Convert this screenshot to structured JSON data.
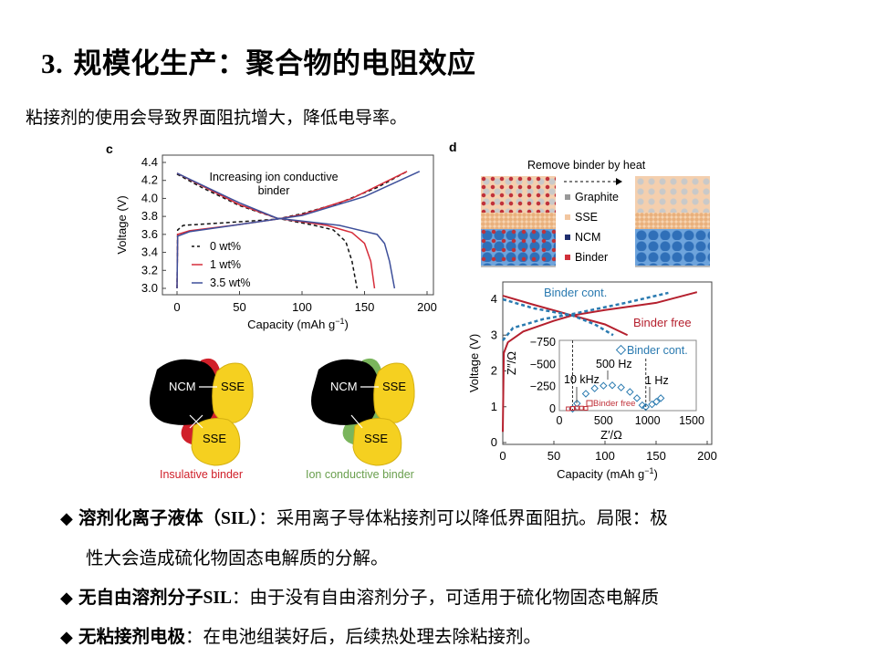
{
  "slide": {
    "title_num": "3.",
    "title_text": " 规模化生产：聚合物的电阻效应",
    "subtitle": "粘接剂的使用会导致界面阻抗增大，降低电导率。"
  },
  "figure_c": {
    "panel_label": "c",
    "annotation_line1": "Increasing ion conductive",
    "annotation_line2": "binder",
    "xlabel": "Capacity (mAh g",
    "xlabel_sup": "−1",
    "xlabel_end": ")",
    "ylabel": "Voltage (V)",
    "xticks": [
      "0",
      "50",
      "100",
      "150",
      "200"
    ],
    "yticks": [
      "3.0",
      "3.2",
      "3.4",
      "3.6",
      "3.8",
      "4.0",
      "4.2",
      "4.4"
    ],
    "legend": [
      {
        "label": "0 wt%",
        "color": "#111111",
        "dash": true
      },
      {
        "label": "1 wt%",
        "color": "#d62d3a",
        "dash": false
      },
      {
        "label": "3.5 wt%",
        "color": "#3d4f9a",
        "dash": false
      }
    ],
    "chart_data": {
      "type": "line",
      "xlim": [
        0,
        200
      ],
      "ylim": [
        2.9,
        4.4
      ],
      "series": [
        {
          "name": "0 wt%",
          "color": "#111111",
          "dash": true,
          "discharge": [
            [
              0,
              4.27
            ],
            [
              20,
              4.12
            ],
            [
              50,
              3.92
            ],
            [
              80,
              3.78
            ],
            [
              110,
              3.7
            ],
            [
              125,
              3.65
            ],
            [
              135,
              3.52
            ],
            [
              140,
              3.3
            ],
            [
              144,
              3.0
            ]
          ],
          "charge": [
            [
              0,
              3.0
            ],
            [
              0.5,
              3.65
            ],
            [
              5,
              3.7
            ],
            [
              50,
              3.74
            ],
            [
              80,
              3.77
            ],
            [
              100,
              3.83
            ],
            [
              130,
              3.95
            ],
            [
              160,
              4.12
            ],
            [
              184,
              4.3
            ]
          ]
        },
        {
          "name": "1 wt%",
          "color": "#d62d3a",
          "dash": false,
          "discharge": [
            [
              0,
              4.28
            ],
            [
              50,
              3.93
            ],
            [
              80,
              3.78
            ],
            [
              120,
              3.7
            ],
            [
              140,
              3.62
            ],
            [
              150,
              3.5
            ],
            [
              155,
              3.3
            ],
            [
              158,
              3.0
            ]
          ],
          "charge": [
            [
              0,
              3.0
            ],
            [
              0.5,
              3.6
            ],
            [
              10,
              3.64
            ],
            [
              50,
              3.71
            ],
            [
              80,
              3.77
            ],
            [
              100,
              3.82
            ],
            [
              140,
              4.0
            ],
            [
              184,
              4.3
            ]
          ]
        },
        {
          "name": "3.5 wt%",
          "color": "#3d4f9a",
          "dash": false,
          "discharge": [
            [
              0,
              4.28
            ],
            [
              50,
              3.95
            ],
            [
              80,
              3.78
            ],
            [
              130,
              3.7
            ],
            [
              160,
              3.6
            ],
            [
              166,
              3.5
            ],
            [
              170,
              3.3
            ],
            [
              174,
              3.0
            ]
          ],
          "charge": [
            [
              0,
              3.0
            ],
            [
              0.5,
              3.58
            ],
            [
              10,
              3.63
            ],
            [
              50,
              3.71
            ],
            [
              80,
              3.77
            ],
            [
              100,
              3.81
            ],
            [
              150,
              4.02
            ],
            [
              194,
              4.3
            ]
          ]
        }
      ]
    }
  },
  "schematic_c": {
    "ncm": "NCM",
    "sse": "SSE",
    "left_caption": "Insulative binder",
    "right_caption": "Ion conductive binder",
    "insulative_color": "#d0202a",
    "conductive_color": "#7ab55c"
  },
  "figure_d": {
    "panel_label": "d",
    "heading": "Remove binder by heat",
    "legend": [
      {
        "label": "Graphite",
        "color": "#999999"
      },
      {
        "label": "SSE",
        "color": "#f2c6a0"
      },
      {
        "label": "NCM",
        "color": "#1f2f6e"
      },
      {
        "label": "Binder",
        "color": "#d0303a"
      }
    ],
    "label_cont": "Binder cont.",
    "label_free": "Binder free",
    "xlabel": "Capacity (mAh g",
    "xlabel_sup": "−1",
    "xlabel_end": ")",
    "ylabel": "Voltage (V)",
    "xticks": [
      "0",
      "50",
      "100",
      "150",
      "200"
    ],
    "yticks": [
      "0",
      "1",
      "2",
      "3",
      "4"
    ],
    "inset": {
      "xlabel": "Z′/Ω",
      "ylabel": "Z″/Ω",
      "xticks": [
        "0",
        "500",
        "1000",
        "1500"
      ],
      "yticks": [
        "0",
        "−250",
        "−500",
        "−750"
      ],
      "legend_cont": "Binder cont.",
      "legend_free": "Binder free",
      "ann_10k": "10 kHz",
      "ann_500": "500 Hz",
      "ann_1": "1 Hz"
    },
    "chart_data": {
      "type": "line",
      "xlim": [
        0,
        200
      ],
      "ylim": [
        0,
        4.4
      ],
      "series": [
        {
          "name": "Binder free",
          "color": "#b5202e",
          "dash": false,
          "discharge": [
            [
              0,
              4.1
            ],
            [
              30,
              3.85
            ],
            [
              68,
              3.55
            ],
            [
              100,
              3.3
            ],
            [
              122,
              3.0
            ]
          ],
          "charge": [
            [
              0,
              0.3
            ],
            [
              1,
              2.5
            ],
            [
              5,
              2.8
            ],
            [
              20,
              3.1
            ],
            [
              50,
              3.4
            ],
            [
              68,
              3.55
            ],
            [
              100,
              3.7
            ],
            [
              150,
              3.9
            ],
            [
              190,
              4.2
            ]
          ]
        },
        {
          "name": "Binder cont.",
          "color": "#2a7ab0",
          "dash": true,
          "discharge": [
            [
              0,
              4.0
            ],
            [
              30,
              3.75
            ],
            [
              68,
              3.55
            ],
            [
              90,
              3.3
            ],
            [
              108,
              3.0
            ]
          ],
          "charge": [
            [
              0,
              2.85
            ],
            [
              10,
              3.2
            ],
            [
              40,
              3.45
            ],
            [
              70,
              3.6
            ],
            [
              120,
              3.9
            ],
            [
              162,
              4.18
            ]
          ]
        }
      ],
      "inset": {
        "type": "scatter",
        "xlim": [
          0,
          1500
        ],
        "ylim": [
          0,
          -750
        ],
        "binder_cont": [
          [
            150,
            0
          ],
          [
            200,
            -60
          ],
          [
            300,
            -170
          ],
          [
            400,
            -230
          ],
          [
            500,
            -260
          ],
          [
            600,
            -265
          ],
          [
            700,
            -240
          ],
          [
            800,
            -190
          ],
          [
            880,
            -120
          ],
          [
            940,
            -40
          ],
          [
            980,
            -20
          ],
          [
            1050,
            -50
          ],
          [
            1100,
            -80
          ],
          [
            1150,
            -120
          ]
        ],
        "binder_free": [
          [
            100,
            0
          ],
          [
            150,
            -5
          ],
          [
            200,
            -10
          ],
          [
            250,
            -8
          ],
          [
            300,
            -5
          ]
        ]
      }
    }
  },
  "bullets": [
    {
      "bold": "溶剂化离子液体（",
      "bold_serif": "SIL",
      "bold_end": "）",
      "text": "：采用离子导体粘接剂可以降低界面阻抗。局限：极",
      "cont": "性大会造成硫化物固态电解质的分解。"
    },
    {
      "bold": "无自由溶剂分子",
      "bold_serif": "SIL",
      "bold_end": "",
      "text": "：由于没有自由溶剂分子，可适用于硫化物固态电解质"
    },
    {
      "bold": "无粘接剂电极",
      "bold_serif": "",
      "bold_end": "",
      "text": "：在电池组装好后，后续热处理去除粘接剂。"
    }
  ],
  "bullet_icon": "diamond-icon"
}
